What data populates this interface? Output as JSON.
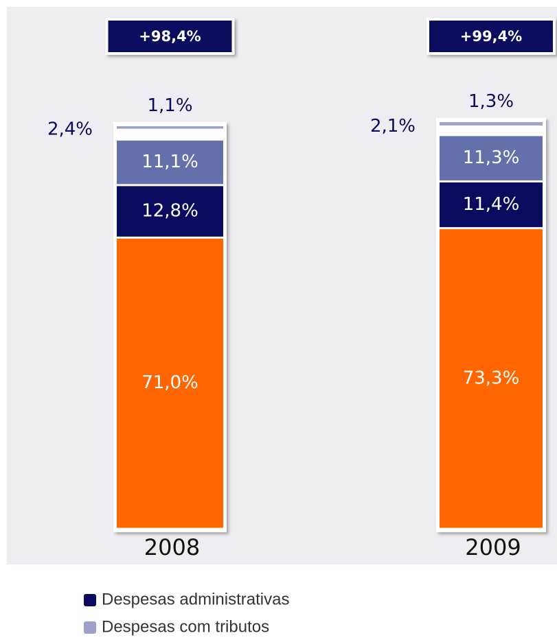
{
  "chart_data": {
    "type": "stacked_bar",
    "categories": [
      "2008",
      "2009"
    ],
    "totals": [
      98.4,
      99.4
    ],
    "total_labels": [
      "+98,4%",
      "+99,4%"
    ],
    "ylim": [
      0,
      100
    ],
    "series": [
      {
        "color": "#ff6600",
        "values": [
          71.0,
          73.3
        ],
        "value_labels": [
          "71,0%",
          "73,3%"
        ]
      },
      {
        "name": "Despesas administrativas",
        "color": "#0a0a5e",
        "values": [
          12.8,
          11.4
        ],
        "value_labels": [
          "12,8%",
          "11,4%"
        ]
      },
      {
        "color": "#6470aa",
        "values": [
          11.1,
          11.3
        ],
        "value_labels": [
          "11,1%",
          "11,3%"
        ]
      },
      {
        "color": "#ffffff",
        "values": [
          2.4,
          2.1
        ],
        "value_labels": [
          "2,4%",
          "2,1%"
        ]
      },
      {
        "name": "Despesas com tributos",
        "color": "#9aa2cc",
        "values": [
          1.1,
          1.3
        ],
        "value_labels": [
          "1,1%",
          "1,3%"
        ]
      }
    ],
    "legend": [
      1,
      4
    ]
  }
}
